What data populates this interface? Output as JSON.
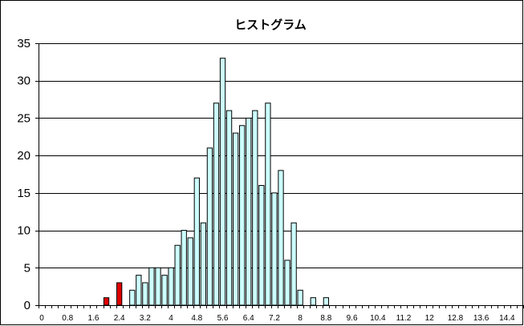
{
  "chart_data": {
    "type": "bar",
    "title": "ヒストグラム",
    "xlabel": "",
    "ylabel": "",
    "ylim": [
      0,
      35
    ],
    "yticks": [
      0,
      5,
      10,
      15,
      20,
      25,
      30,
      35
    ],
    "bin_width": 0.2,
    "x_start": 0,
    "xtick_labels": [
      "0",
      "0.8",
      "1.6",
      "2.4",
      "3.2",
      "4",
      "4.8",
      "5.6",
      "6.4",
      "7.2",
      "8",
      "8.8",
      "9.6",
      "10.4",
      "11.2",
      "12",
      "12.8",
      "13.6",
      "14.4"
    ],
    "grid": true,
    "legend": "none",
    "colors": {
      "bar_fill": "#ccffff",
      "bar_stroke": "#000000",
      "highlight_fill": "#e00000",
      "grid": "#000000",
      "frame": "#000000"
    },
    "highlight_bins": [
      10,
      12
    ],
    "values": [
      0,
      0,
      0,
      0,
      0,
      0,
      0,
      0,
      0,
      0,
      1,
      0,
      3,
      0,
      2,
      4,
      3,
      5,
      5,
      4,
      5,
      8,
      10,
      9,
      17,
      11,
      21,
      27,
      33,
      26,
      23,
      24,
      25,
      26,
      16,
      27,
      15,
      18,
      6,
      11,
      2,
      0,
      1,
      0,
      1,
      0,
      0,
      0,
      0,
      0,
      0,
      0,
      0,
      0,
      0,
      0,
      0,
      0,
      0,
      0,
      0,
      0,
      0,
      0,
      0,
      0,
      0,
      0,
      0,
      0,
      0,
      0,
      0,
      0,
      0
    ]
  }
}
